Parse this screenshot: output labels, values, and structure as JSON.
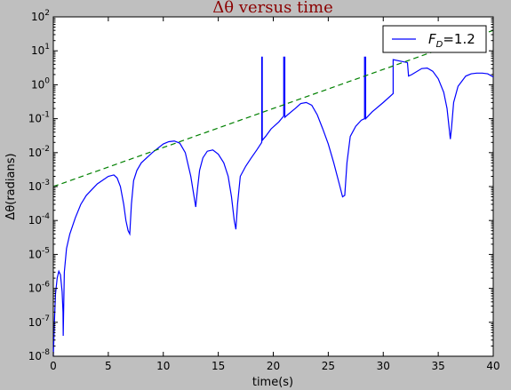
{
  "chart_data": {
    "type": "line",
    "title": "Δθ versus time",
    "xlabel": "time(s)",
    "ylabel": "Δθ(radians)",
    "xlim": [
      0,
      40
    ],
    "ylim": [
      1e-08,
      100
    ],
    "yscale": "log",
    "grid": false,
    "legend_position": "top-right",
    "x_ticks": [
      "0",
      "5",
      "10",
      "15",
      "20",
      "25",
      "30",
      "35",
      "40"
    ],
    "y_ticks": [
      {
        "base": "10",
        "exp": "2"
      },
      {
        "base": "10",
        "exp": "1"
      },
      {
        "base": "10",
        "exp": "0"
      },
      {
        "base": "10",
        "exp": "-1"
      },
      {
        "base": "10",
        "exp": "-2"
      },
      {
        "base": "10",
        "exp": "-3"
      },
      {
        "base": "10",
        "exp": "-4"
      },
      {
        "base": "10",
        "exp": "-5"
      },
      {
        "base": "10",
        "exp": "-6"
      },
      {
        "base": "10",
        "exp": "-7"
      },
      {
        "base": "10",
        "exp": "-8"
      }
    ],
    "series": [
      {
        "name": "F_D=1.2",
        "legend_label": "F",
        "legend_sub": "D",
        "legend_suffix": "=1.2",
        "color": "#0000ff",
        "style": "solid",
        "x": [
          0.0,
          0.1,
          0.2,
          0.35,
          0.5,
          0.65,
          0.8,
          0.88,
          0.9,
          0.93,
          1.0,
          1.2,
          1.5,
          2.0,
          2.5,
          3.0,
          4.0,
          5.0,
          5.5,
          5.8,
          6.1,
          6.4,
          6.6,
          6.8,
          6.95,
          7.1,
          7.3,
          7.6,
          8.0,
          9.0,
          10.0,
          10.5,
          11.0,
          11.5,
          12.0,
          12.5,
          12.8,
          12.95,
          13.1,
          13.3,
          13.6,
          14.0,
          14.5,
          15.0,
          15.5,
          15.9,
          16.2,
          16.45,
          16.6,
          16.75,
          17.0,
          17.5,
          18.0,
          18.5,
          18.95,
          18.95,
          19.0,
          19.0,
          19.3,
          19.8,
          20.5,
          20.95,
          20.95,
          21.05,
          21.05,
          21.3,
          22.0,
          22.5,
          23.0,
          23.5,
          24.0,
          24.5,
          25.0,
          25.5,
          26.0,
          26.3,
          26.5,
          26.7,
          27.0,
          27.5,
          28.0,
          28.3,
          28.3,
          28.4,
          28.4,
          29.0,
          30.0,
          30.9,
          30.9,
          31.5,
          32.2,
          32.3,
          32.6,
          33.5,
          34.0,
          34.5,
          35.0,
          35.5,
          35.8,
          36.0,
          36.1,
          36.2,
          36.4,
          36.8,
          37.5,
          38.0,
          38.5,
          39.0,
          39.5,
          40.0
        ],
        "y": [
          1e-08,
          1e-07,
          7e-07,
          2e-06,
          3.2e-06,
          2.5e-06,
          8e-07,
          2e-07,
          4e-08,
          1.5e-07,
          3e-06,
          1.5e-05,
          4e-05,
          0.00012,
          0.0003,
          0.00055,
          0.0012,
          0.002,
          0.0022,
          0.0018,
          0.001,
          0.0003,
          0.0001,
          5e-05,
          4e-05,
          0.0003,
          0.0015,
          0.003,
          0.005,
          0.01,
          0.018,
          0.021,
          0.022,
          0.019,
          0.01,
          0.002,
          0.0005,
          0.00025,
          0.0008,
          0.003,
          0.007,
          0.011,
          0.012,
          0.009,
          0.005,
          0.002,
          0.0005,
          0.0001,
          5.5e-05,
          0.0003,
          0.002,
          0.004,
          0.007,
          0.012,
          0.02,
          6.5,
          6.5,
          0.023,
          0.03,
          0.05,
          0.08,
          0.12,
          6.5,
          6.5,
          0.11,
          0.13,
          0.2,
          0.28,
          0.3,
          0.25,
          0.13,
          0.05,
          0.018,
          0.005,
          0.0012,
          0.0005,
          0.00055,
          0.005,
          0.03,
          0.06,
          0.09,
          0.1,
          6.5,
          6.5,
          0.1,
          0.16,
          0.3,
          0.55,
          5.5,
          5.0,
          4.5,
          1.8,
          2.0,
          3.0,
          3.1,
          2.5,
          1.5,
          0.6,
          0.2,
          0.05,
          0.025,
          0.05,
          0.3,
          0.9,
          1.8,
          2.1,
          2.2,
          2.2,
          2.1,
          1.7
        ]
      },
      {
        "name": "",
        "color": "#008000",
        "style": "dashed",
        "x": [
          0,
          40
        ],
        "y": [
          0.001,
          40
        ]
      }
    ]
  }
}
